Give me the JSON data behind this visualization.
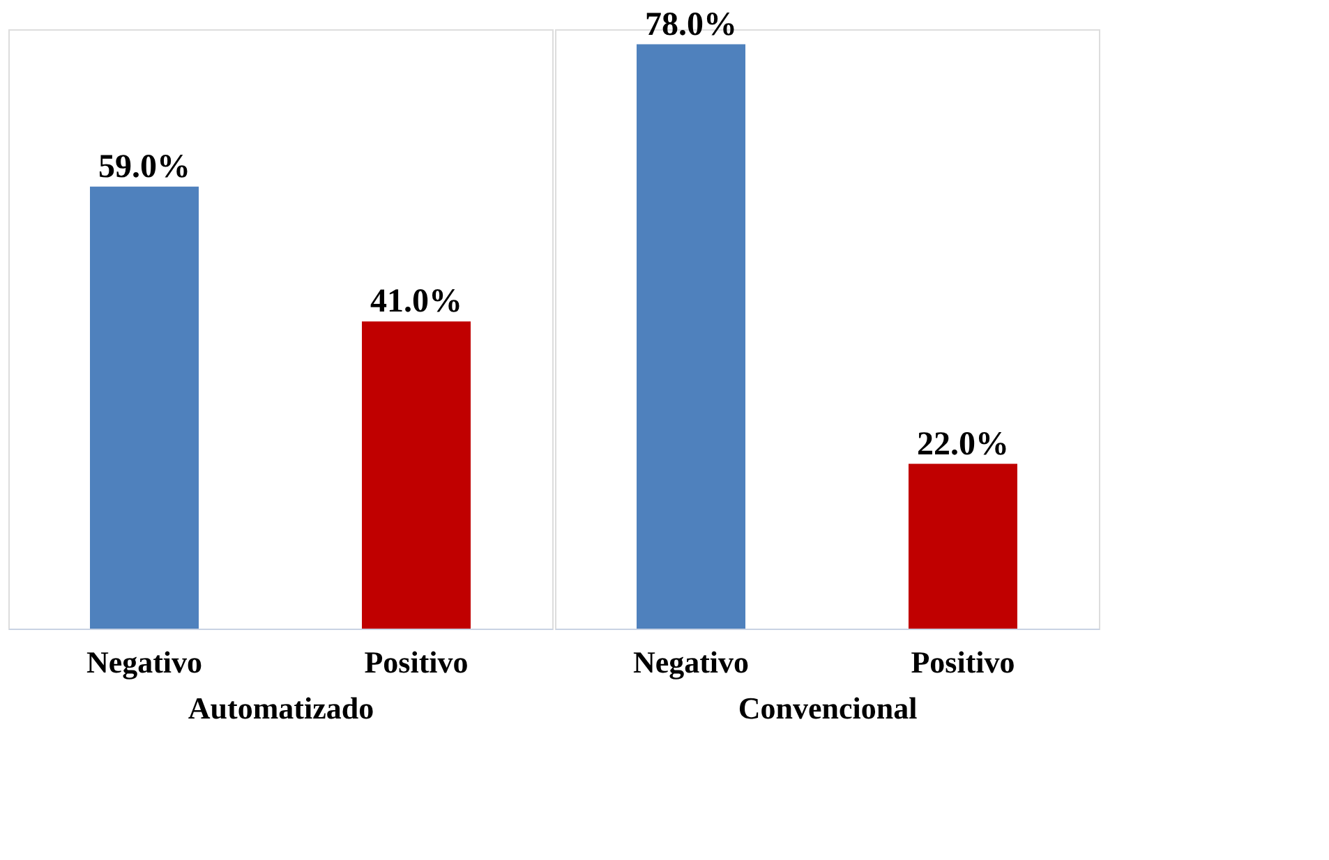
{
  "chart_data": [
    {
      "type": "bar",
      "xlabel": "Automatizado",
      "categories": [
        "Negativo",
        "Positivo"
      ],
      "values": [
        59,
        41
      ],
      "value_labels": [
        "59.0%",
        "41.0%"
      ],
      "colors": [
        "#4f81bd",
        "#c00000"
      ],
      "grid": false
    },
    {
      "type": "bar",
      "xlabel": "Convencional",
      "categories": [
        "Negativo",
        "Positivo"
      ],
      "values": [
        78,
        22
      ],
      "value_labels": [
        "78.0%",
        "22.0%"
      ],
      "colors": [
        "#4f81bd",
        "#c00000"
      ],
      "grid": false
    }
  ]
}
